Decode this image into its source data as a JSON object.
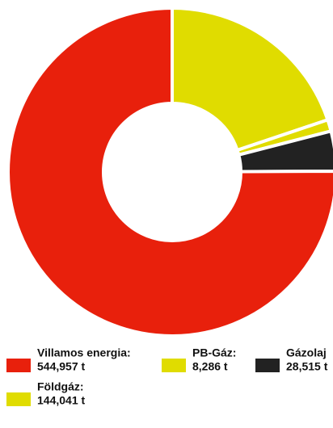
{
  "chart_data": {
    "type": "donut",
    "series": [
      {
        "name": "Földgáz:",
        "color": "#e0dc00",
        "value": 144041,
        "value_label": "144,041 t"
      },
      {
        "name": "PB-Gáz:",
        "color": "#e0dc00",
        "value": 8286,
        "value_label": "8,286 t"
      },
      {
        "name": "Gázolaj",
        "color": "#222222",
        "value": 28515,
        "value_label": "28,515 t"
      },
      {
        "name": "Villamos energia:",
        "color": "#e8200c",
        "value": 544957,
        "value_label": "544,957 t"
      }
    ]
  }
}
